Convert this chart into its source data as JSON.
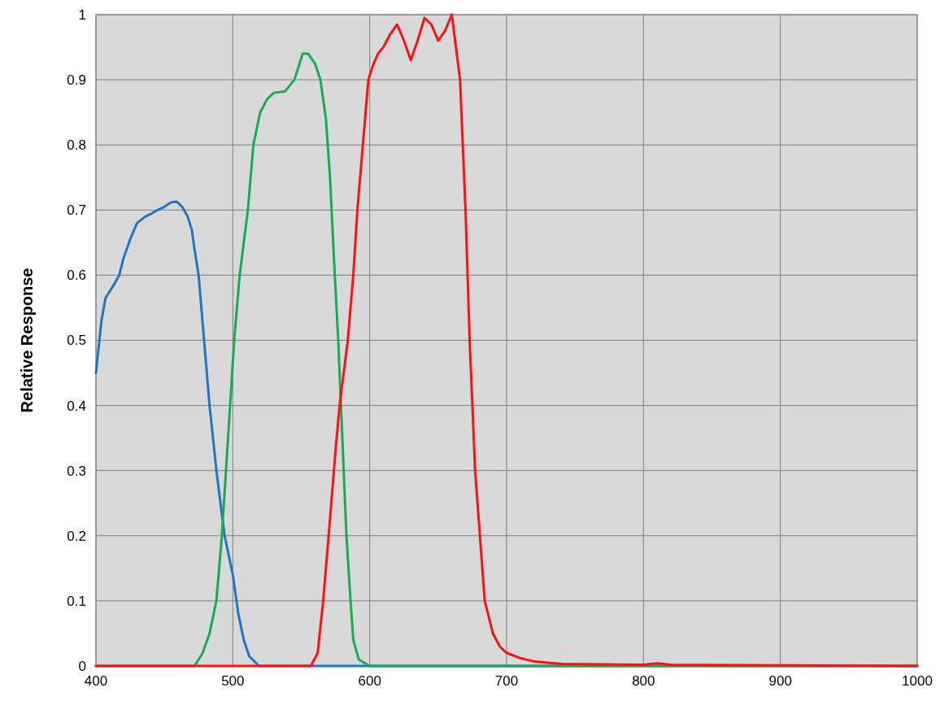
{
  "chart_data": {
    "type": "line",
    "ylabel": "Relative Response",
    "xlim": [
      400,
      1000
    ],
    "ylim": [
      0,
      1
    ],
    "xticks": [
      400,
      500,
      600,
      700,
      800,
      900,
      1000
    ],
    "yticks": [
      0,
      0.1,
      0.2,
      0.3,
      0.4,
      0.5,
      0.6,
      0.7,
      0.8,
      0.9,
      1
    ],
    "grid": true,
    "marker": "none",
    "line_style": "solid",
    "series": [
      {
        "color": "#1f77c4",
        "x": [
          400,
          404,
          407,
          413,
          417,
          420,
          425,
          430,
          436,
          441,
          445,
          450,
          455,
          459,
          463,
          467,
          470,
          472,
          475,
          479,
          483,
          488,
          494,
          497,
          500,
          504,
          508,
          512,
          519,
          1000
        ],
        "values": [
          0.45,
          0.53,
          0.565,
          0.585,
          0.6,
          0.625,
          0.655,
          0.68,
          0.69,
          0.695,
          0.7,
          0.705,
          0.712,
          0.713,
          0.705,
          0.69,
          0.67,
          0.64,
          0.6,
          0.5,
          0.4,
          0.3,
          0.2,
          0.17,
          0.14,
          0.08,
          0.04,
          0.015,
          0,
          0
        ]
      },
      {
        "color": "#1aaa50",
        "x": [
          400,
          472,
          478,
          483,
          488,
          492,
          495,
          498,
          501,
          505,
          511,
          515,
          520,
          525,
          530,
          538,
          545,
          551,
          555,
          560,
          564,
          568,
          571,
          574,
          577,
          580,
          583,
          586,
          588,
          592,
          600,
          1000
        ],
        "values": [
          0,
          0,
          0.02,
          0.05,
          0.1,
          0.2,
          0.3,
          0.4,
          0.5,
          0.6,
          0.7,
          0.8,
          0.85,
          0.87,
          0.88,
          0.882,
          0.9,
          0.94,
          0.94,
          0.925,
          0.9,
          0.84,
          0.75,
          0.62,
          0.5,
          0.35,
          0.2,
          0.1,
          0.04,
          0.01,
          0,
          0
        ]
      },
      {
        "color": "#ff1010",
        "x": [
          400,
          557,
          562,
          566,
          570,
          575,
          578,
          584,
          588,
          591,
          595,
          599,
          602,
          606,
          610,
          615,
          620,
          625,
          630,
          635,
          640,
          645,
          650,
          655,
          660,
          663,
          666,
          670,
          673,
          677,
          684,
          690,
          695,
          700,
          710,
          720,
          740,
          800,
          810,
          820,
          1000
        ],
        "values": [
          0,
          0,
          0.02,
          0.1,
          0.2,
          0.33,
          0.4,
          0.5,
          0.6,
          0.7,
          0.8,
          0.9,
          0.92,
          0.94,
          0.95,
          0.97,
          0.985,
          0.96,
          0.93,
          0.96,
          0.995,
          0.985,
          0.96,
          0.975,
          1,
          0.95,
          0.9,
          0.7,
          0.5,
          0.3,
          0.1,
          0.05,
          0.03,
          0.02,
          0.012,
          0.007,
          0.003,
          0.002,
          0.004,
          0.002,
          0
        ]
      }
    ]
  }
}
